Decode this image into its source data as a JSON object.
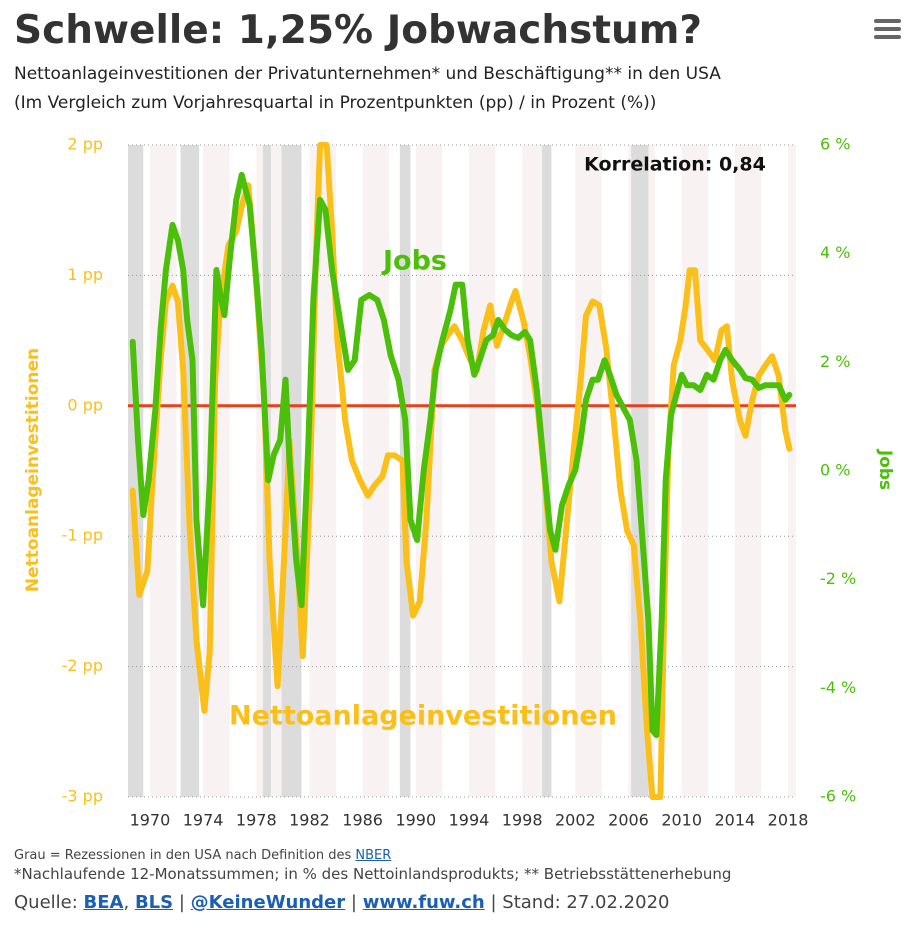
{
  "title": "Schwelle: 1,25% Jobwachstum?",
  "subtitle": [
    "Nettoanlageinvestitionen der Privatunternehmen* und Beschäftigung** in den USA",
    "(Im Vergleich zum Vorjahresquartal in Prozentpunkten (pp) / in Prozent (%))"
  ],
  "chart_data": {
    "type": "line",
    "ylabel": "Nettoanlageinvestitionen",
    "y2label": "Jobs",
    "annotations": [
      "Korrelation: 0,84"
    ],
    "xlim": [
      1968.35,
      2018.6
    ],
    "xticks": [
      1970,
      1974,
      1978,
      1982,
      1986,
      1990,
      1994,
      1998,
      2002,
      2006,
      2010,
      2014,
      2018
    ],
    "ylim": [
      -3,
      2
    ],
    "yticks": [
      {
        "value": 2,
        "label": "2 pp"
      },
      {
        "value": 1,
        "label": "1 pp"
      },
      {
        "value": 0,
        "label": "0 pp"
      },
      {
        "value": -1,
        "label": "-1 pp"
      },
      {
        "value": -2,
        "label": "-2 pp"
      },
      {
        "value": -3,
        "label": "-3 pp"
      }
    ],
    "y2lim": [
      -6,
      6
    ],
    "y2ticks": [
      {
        "value": 6,
        "label": "6 %"
      },
      {
        "value": 4,
        "label": "4 %"
      },
      {
        "value": 2,
        "label": "2 %"
      },
      {
        "value": 0,
        "label": "0 %"
      },
      {
        "value": -2,
        "label": "-2 %"
      },
      {
        "value": -4,
        "label": "-4 %"
      },
      {
        "value": -6,
        "label": "-6 %"
      }
    ],
    "grid": true,
    "recessions": [
      [
        1968.35,
        1969.5
      ],
      [
        1972.3,
        1973.7
      ],
      [
        1978.5,
        1979.1
      ],
      [
        1979.9,
        1981.4
      ],
      [
        1988.8,
        1989.6
      ],
      [
        1999.5,
        2000.2
      ],
      [
        2006.2,
        2007.5
      ]
    ],
    "series": [
      {
        "name": "Nettoanlageinvestitionen",
        "color": "#fbbf1a",
        "axis": "y",
        "x": [
          1968.7,
          1969.2,
          1969.8,
          1970.2,
          1970.8,
          1971.2,
          1971.7,
          1972.1,
          1972.5,
          1973.0,
          1973.5,
          1974.1,
          1974.5,
          1974.9,
          1975.3,
          1975.9,
          1976.5,
          1977.0,
          1977.4,
          1977.7,
          1978.1,
          1978.6,
          1979.0,
          1979.6,
          1980.2,
          1980.5,
          1981.1,
          1981.5,
          1982.0,
          1982.5,
          1982.8,
          1983.3,
          1983.7,
          1984.1,
          1984.7,
          1985.2,
          1985.8,
          1986.4,
          1986.9,
          1987.5,
          1987.9,
          1988.4,
          1989.0,
          1989.3,
          1989.8,
          1990.3,
          1990.8,
          1991.4,
          1991.9,
          1992.4,
          1992.9,
          1993.5,
          1994.1,
          1994.6,
          1995.1,
          1995.6,
          1996.1,
          1996.6,
          1997.2,
          1997.5,
          1998.1,
          1998.6,
          1999.2,
          1999.7,
          2000.2,
          2000.8,
          2001.3,
          2001.8,
          2002.4,
          2002.8,
          2003.3,
          2003.8,
          2004.3,
          2004.9,
          2005.4,
          2005.9,
          2006.4,
          2006.9,
          2007.4,
          2007.8,
          2008.4,
          2008.7,
          2009.0,
          2009.4,
          2009.9,
          2010.3,
          2010.6,
          2011.0,
          2011.4,
          2012.0,
          2012.5,
          2013.0,
          2013.4,
          2013.8,
          2014.4,
          2014.8,
          2015.3,
          2015.8,
          2016.3,
          2016.8,
          2017.3,
          2017.8,
          2018.1
        ],
        "values": [
          -0.65,
          -1.45,
          -1.27,
          -0.57,
          0.35,
          0.8,
          0.92,
          0.8,
          0.27,
          -0.96,
          -1.8,
          -2.34,
          -1.88,
          0.19,
          0.8,
          1.23,
          1.34,
          1.57,
          1.69,
          1.34,
          0.8,
          0.04,
          -1.19,
          -2.15,
          -0.96,
          -0.27,
          -1.19,
          -1.92,
          -0.73,
          1.19,
          2.0,
          2.0,
          1.34,
          0.5,
          -0.12,
          -0.42,
          -0.57,
          -0.69,
          -0.61,
          -0.54,
          -0.38,
          -0.38,
          -0.42,
          -1.19,
          -1.61,
          -1.5,
          -0.88,
          0.27,
          0.46,
          0.54,
          0.61,
          0.5,
          0.35,
          0.27,
          0.58,
          0.77,
          0.46,
          0.61,
          0.8,
          0.88,
          0.65,
          0.38,
          -0.04,
          -0.57,
          -1.19,
          -1.5,
          -0.96,
          -0.42,
          0.19,
          0.69,
          0.8,
          0.77,
          0.46,
          -0.12,
          -0.65,
          -0.96,
          -1.07,
          -1.65,
          -2.49,
          -3.0,
          -3.0,
          -1.5,
          -0.35,
          0.31,
          0.5,
          0.77,
          1.04,
          1.04,
          0.5,
          0.42,
          0.35,
          0.58,
          0.61,
          0.19,
          -0.12,
          -0.23,
          0.04,
          0.23,
          0.31,
          0.38,
          0.23,
          -0.19,
          -0.33
        ]
      },
      {
        "name": "Jobs",
        "color": "#4cbf0a",
        "axis": "y2",
        "x": [
          1968.7,
          1969.1,
          1969.5,
          1969.9,
          1970.4,
          1970.8,
          1971.2,
          1971.7,
          1972.1,
          1972.5,
          1972.8,
          1973.2,
          1973.5,
          1974.0,
          1974.5,
          1975.0,
          1975.3,
          1975.6,
          1976.0,
          1976.5,
          1976.9,
          1977.5,
          1978.0,
          1978.4,
          1978.9,
          1979.3,
          1979.8,
          1980.2,
          1980.5,
          1981.0,
          1981.4,
          1981.9,
          1982.3,
          1982.8,
          1983.2,
          1983.7,
          1984.3,
          1984.9,
          1985.4,
          1985.9,
          1986.5,
          1987.1,
          1987.6,
          1988.1,
          1988.7,
          1989.2,
          1989.6,
          1990.1,
          1990.6,
          1991.1,
          1991.5,
          1992.0,
          1992.6,
          1993.0,
          1993.5,
          1993.9,
          1994.4,
          1994.8,
          1995.3,
          1995.8,
          1996.2,
          1996.7,
          1997.2,
          1997.7,
          1998.2,
          1998.6,
          1999.1,
          1999.6,
          2000.1,
          2000.5,
          2001.0,
          2001.5,
          2002.0,
          2002.4,
          2002.8,
          2003.3,
          2003.7,
          2004.2,
          2004.6,
          2005.1,
          2005.7,
          2006.1,
          2006.6,
          2007.0,
          2007.5,
          2007.8,
          2008.1,
          2008.5,
          2008.8,
          2009.2,
          2009.5,
          2010.0,
          2010.4,
          2010.9,
          2011.4,
          2011.9,
          2012.4,
          2012.9,
          2013.3,
          2013.8,
          2014.4,
          2014.8,
          2015.3,
          2015.8,
          2016.3,
          2016.8,
          2017.3,
          2017.8,
          2018.1
        ],
        "values": [
          2.38,
          0.57,
          -0.81,
          -0.17,
          1.12,
          2.6,
          3.7,
          4.53,
          4.25,
          3.7,
          2.78,
          2.04,
          -0.9,
          -2.47,
          -0.17,
          3.7,
          3.24,
          2.87,
          3.89,
          4.99,
          5.45,
          4.9,
          3.52,
          2.23,
          -0.17,
          0.29,
          0.57,
          1.68,
          0.2,
          -1.64,
          -2.47,
          0.39,
          3.15,
          4.99,
          4.81,
          3.7,
          2.78,
          1.86,
          2.04,
          3.15,
          3.24,
          3.15,
          2.78,
          2.14,
          1.68,
          0.94,
          -0.9,
          -1.27,
          0.02,
          0.94,
          1.86,
          2.41,
          2.96,
          3.43,
          3.43,
          2.41,
          1.77,
          2.04,
          2.41,
          2.5,
          2.78,
          2.6,
          2.5,
          2.45,
          2.56,
          2.41,
          1.49,
          0.2,
          -1.09,
          -1.45,
          -0.63,
          -0.26,
          0.02,
          0.57,
          1.31,
          1.68,
          1.68,
          2.04,
          1.77,
          1.4,
          1.12,
          0.94,
          0.2,
          -1.09,
          -2.74,
          -4.77,
          -4.86,
          -2.74,
          -0.17,
          1.03,
          1.31,
          1.77,
          1.58,
          1.58,
          1.49,
          1.77,
          1.68,
          2.04,
          2.23,
          2.04,
          1.86,
          1.71,
          1.68,
          1.53,
          1.58,
          1.58,
          1.58,
          1.31,
          1.4
        ]
      }
    ]
  },
  "footer": {
    "note": {
      "text": "Grau = Rezessionen in den USA nach Definition des",
      "link": "NBER"
    },
    "footnote": "*Nachlaufende 12-Monatssummen; in % des Nettoinlandsprodukts; ** Betriebsstättenerhebung",
    "source": [
      {
        "text": "Quelle:"
      },
      {
        "text": "BEA",
        "link": true
      },
      {
        "text": ","
      },
      {
        "text": "BLS",
        "link": true
      },
      {
        "text": "|"
      },
      {
        "text": "@KeineWunder",
        "link": true
      },
      {
        "text": "|"
      },
      {
        "text": "www.fuw.ch",
        "link": true
      },
      {
        "text": "|"
      },
      {
        "text": "Stand: 27.02.2020"
      }
    ]
  }
}
